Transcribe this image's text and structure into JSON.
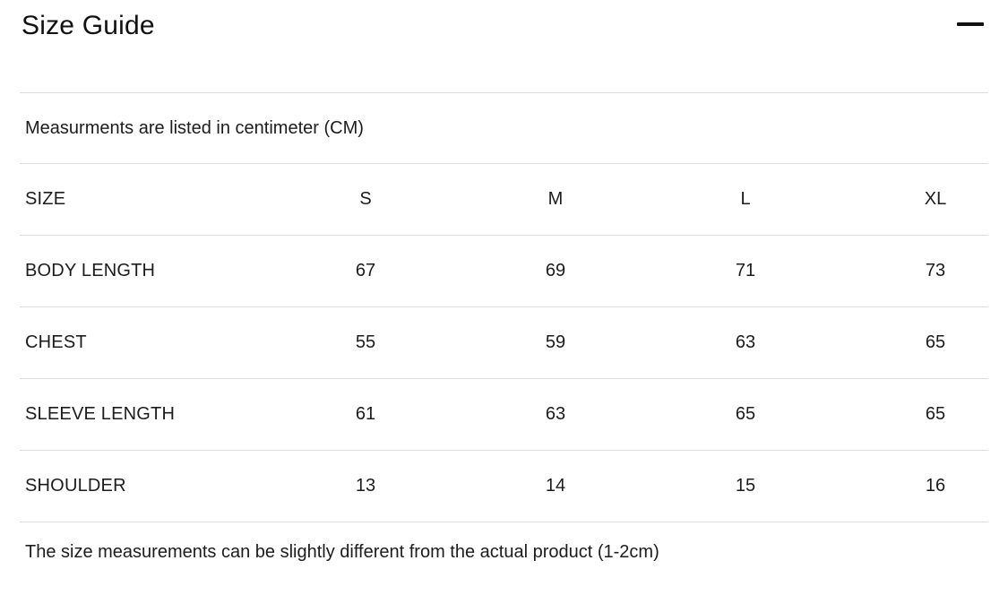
{
  "header": {
    "title": "Size Guide"
  },
  "note": "Measurments are listed in centimeter (CM)",
  "table": {
    "columns": [
      "SIZE",
      "S",
      "M",
      "L",
      "XL"
    ],
    "rows": [
      {
        "label": "BODY LENGTH",
        "values": [
          "67",
          "69",
          "71",
          "73"
        ]
      },
      {
        "label": "CHEST",
        "values": [
          "55",
          "59",
          "63",
          "65"
        ]
      },
      {
        "label": "SLEEVE LENGTH",
        "values": [
          "61",
          "63",
          "65",
          "65"
        ]
      },
      {
        "label": "SHOULDER",
        "values": [
          "13",
          "14",
          "15",
          "16"
        ]
      }
    ]
  },
  "footer": "The size measurements can be slightly different from the actual product (1-2cm)",
  "colors": {
    "text": "#1c1c1c",
    "divider": "#dcdcdc",
    "background": "#ffffff"
  }
}
